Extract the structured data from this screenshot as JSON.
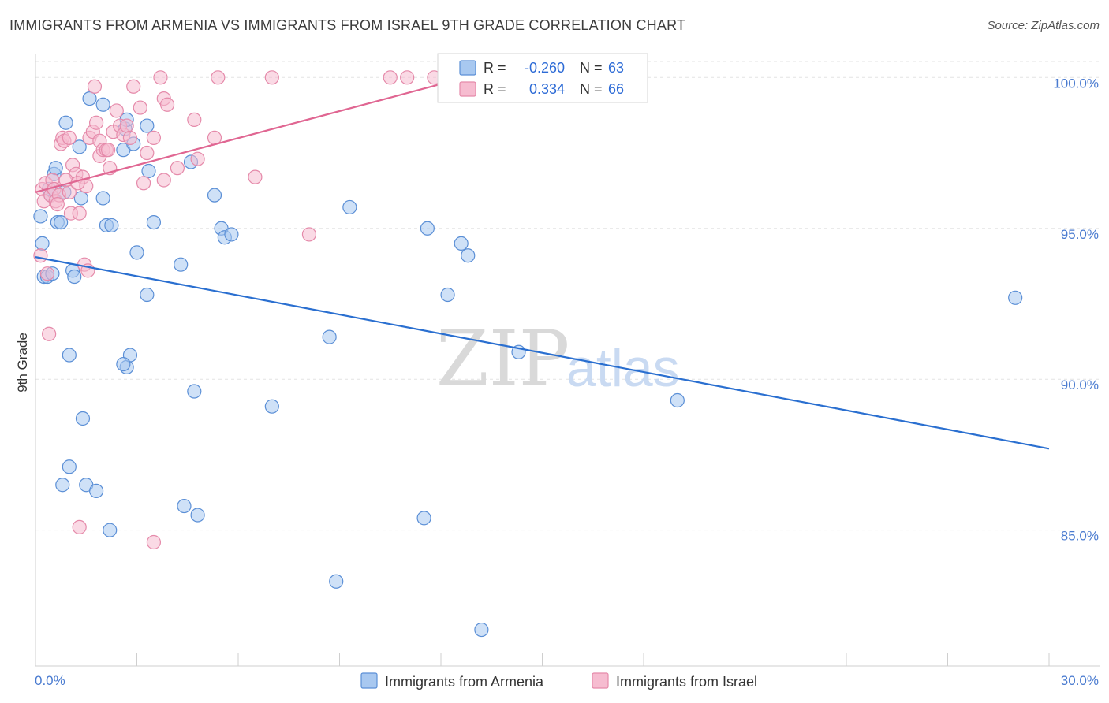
{
  "title": "IMMIGRANTS FROM ARMENIA VS IMMIGRANTS FROM ISRAEL 9TH GRADE CORRELATION CHART",
  "source": "Source: ZipAtlas.com",
  "watermark": {
    "zip": "ZIP",
    "atlas": "atlas"
  },
  "colors": {
    "armenia_fill": "#a8c8f0",
    "armenia_stroke": "#5b8fd6",
    "armenia_line": "#2a6fd0",
    "israel_fill": "#f6bcd0",
    "israel_stroke": "#e58aaa",
    "israel_line": "#e06692",
    "grid": "#e3e3e3",
    "axis_label": "#4a7bd0"
  },
  "legend_box": {
    "r_label": "R =",
    "n_label": "N =",
    "rows": [
      {
        "series": "Immigrants from Armenia",
        "r": "-0.260",
        "n": "63"
      },
      {
        "series": "Immigrants from Israel",
        "r": "0.334",
        "n": "66"
      }
    ]
  },
  "chart_data": {
    "type": "scatter",
    "title": "IMMIGRANTS FROM ARMENIA VS IMMIGRANTS FROM ISRAEL 9TH GRADE CORRELATION CHART",
    "xlabel": "",
    "ylabel": "9th Grade",
    "xlim": [
      0,
      30
    ],
    "ylim": [
      80.5,
      101
    ],
    "x_tick_labels": [
      "0.0%",
      "30.0%"
    ],
    "y_ticks": [
      85,
      90,
      95,
      100
    ],
    "y_tick_labels": [
      "85.0%",
      "90.0%",
      "95.0%",
      "100.0%"
    ],
    "grid": true,
    "legend": "bottom-center",
    "series": [
      {
        "name": "Immigrants from Armenia",
        "trend": {
          "x": [
            0,
            30
          ],
          "y": [
            94.05,
            87.7
          ]
        },
        "points": [
          [
            0.15,
            95.4
          ],
          [
            0.2,
            94.5
          ],
          [
            0.25,
            93.4
          ],
          [
            0.35,
            93.4
          ],
          [
            0.4,
            96.3
          ],
          [
            0.45,
            96.1
          ],
          [
            0.5,
            93.5
          ],
          [
            0.55,
            96.8
          ],
          [
            0.6,
            97.0
          ],
          [
            0.65,
            95.2
          ],
          [
            0.75,
            95.2
          ],
          [
            0.85,
            96.2
          ],
          [
            0.9,
            98.5
          ],
          [
            1.0,
            90.8
          ],
          [
            1.1,
            93.6
          ],
          [
            1.15,
            93.4
          ],
          [
            1.3,
            97.7
          ],
          [
            1.35,
            96.0
          ],
          [
            1.4,
            88.7
          ],
          [
            1.6,
            99.3
          ],
          [
            2.0,
            99.1
          ],
          [
            2.0,
            96.0
          ],
          [
            2.1,
            95.1
          ],
          [
            2.25,
            95.1
          ],
          [
            2.6,
            97.6
          ],
          [
            2.65,
            98.3
          ],
          [
            2.7,
            98.6
          ],
          [
            2.9,
            97.8
          ],
          [
            3.3,
            98.4
          ],
          [
            3.0,
            94.2
          ],
          [
            3.35,
            96.9
          ],
          [
            3.3,
            92.8
          ],
          [
            3.5,
            95.2
          ],
          [
            4.3,
            93.8
          ],
          [
            4.6,
            97.2
          ],
          [
            4.7,
            89.6
          ],
          [
            5.3,
            96.1
          ],
          [
            5.5,
            95.0
          ],
          [
            5.6,
            94.7
          ],
          [
            5.8,
            94.8
          ],
          [
            2.7,
            90.4
          ],
          [
            2.8,
            90.8
          ],
          [
            2.6,
            90.5
          ],
          [
            1.0,
            87.1
          ],
          [
            0.8,
            86.5
          ],
          [
            1.5,
            86.5
          ],
          [
            1.8,
            86.3
          ],
          [
            2.2,
            85.0
          ],
          [
            4.4,
            85.8
          ],
          [
            4.8,
            85.5
          ],
          [
            7.0,
            89.1
          ],
          [
            8.7,
            91.4
          ],
          [
            9.3,
            95.7
          ],
          [
            8.9,
            83.3
          ],
          [
            11.6,
            95.0
          ],
          [
            12.2,
            92.8
          ],
          [
            12.6,
            94.5
          ],
          [
            12.8,
            94.1
          ],
          [
            11.5,
            85.4
          ],
          [
            13.2,
            81.7
          ],
          [
            14.3,
            90.9
          ],
          [
            19.0,
            89.3
          ],
          [
            29.0,
            92.7
          ]
        ]
      },
      {
        "name": "Immigrants from Israel",
        "trend": {
          "x": [
            0,
            12.4
          ],
          "y": [
            96.2,
            99.9
          ]
        },
        "points": [
          [
            0.2,
            96.3
          ],
          [
            0.25,
            95.9
          ],
          [
            0.3,
            96.5
          ],
          [
            0.45,
            96.1
          ],
          [
            0.5,
            96.6
          ],
          [
            0.55,
            96.3
          ],
          [
            0.6,
            95.9
          ],
          [
            0.7,
            96.1
          ],
          [
            0.75,
            97.8
          ],
          [
            0.8,
            98.0
          ],
          [
            0.85,
            97.9
          ],
          [
            1.0,
            98.0
          ],
          [
            1.0,
            96.2
          ],
          [
            1.05,
            95.5
          ],
          [
            1.1,
            97.1
          ],
          [
            1.2,
            96.8
          ],
          [
            1.3,
            95.5
          ],
          [
            1.4,
            96.7
          ],
          [
            1.45,
            93.8
          ],
          [
            1.5,
            96.4
          ],
          [
            1.6,
            98.0
          ],
          [
            1.7,
            98.2
          ],
          [
            1.75,
            99.7
          ],
          [
            1.8,
            98.5
          ],
          [
            1.9,
            97.4
          ],
          [
            1.9,
            97.9
          ],
          [
            2.0,
            97.6
          ],
          [
            2.1,
            97.6
          ],
          [
            2.2,
            97.0
          ],
          [
            2.3,
            98.2
          ],
          [
            2.4,
            98.9
          ],
          [
            2.5,
            98.4
          ],
          [
            2.6,
            98.1
          ],
          [
            2.7,
            98.4
          ],
          [
            2.8,
            98.0
          ],
          [
            2.9,
            99.7
          ],
          [
            3.1,
            99.0
          ],
          [
            3.2,
            96.5
          ],
          [
            3.3,
            97.5
          ],
          [
            3.5,
            98.0
          ],
          [
            3.7,
            100.0
          ],
          [
            3.8,
            99.3
          ],
          [
            3.9,
            99.1
          ],
          [
            3.8,
            96.6
          ],
          [
            4.2,
            97.0
          ],
          [
            4.7,
            98.6
          ],
          [
            4.8,
            97.3
          ],
          [
            5.3,
            98.0
          ],
          [
            5.4,
            100.0
          ],
          [
            6.5,
            96.7
          ],
          [
            7.0,
            100.0
          ],
          [
            8.1,
            94.8
          ],
          [
            10.5,
            100.0
          ],
          [
            11.0,
            100.0
          ],
          [
            11.8,
            100.0
          ],
          [
            12.5,
            99.4
          ],
          [
            0.15,
            94.1
          ],
          [
            0.35,
            93.5
          ],
          [
            0.4,
            91.5
          ],
          [
            1.3,
            85.1
          ],
          [
            3.5,
            84.6
          ],
          [
            1.55,
            93.6
          ],
          [
            0.9,
            96.6
          ],
          [
            2.15,
            97.6
          ],
          [
            1.25,
            96.5
          ],
          [
            0.65,
            95.8
          ]
        ]
      }
    ]
  },
  "bottom_legend": {
    "armenia_label": "Immigrants from Armenia",
    "israel_label": "Immigrants from Israel"
  }
}
